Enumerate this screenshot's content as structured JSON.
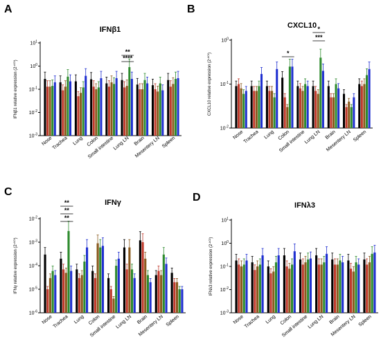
{
  "colors": [
    "#000000",
    "#c0392b",
    "#8a5a1e",
    "#2e8b2e",
    "#1f2fd0"
  ],
  "chart_data": [
    {
      "panel": "A",
      "title": "IFNβ1",
      "type": "bar",
      "yscale": "log",
      "ylabel": "IFNβ1 relative expression (2^-ΔCt)",
      "ylim_exp": [
        -3,
        1
      ],
      "tick_labels": [
        "10^-3",
        "10^-2",
        "10^-1",
        "10^0",
        "10^1"
      ],
      "categories": [
        "Nose",
        "Trachea",
        "Lung",
        "Colon",
        "Small intestine",
        "Lung LN",
        "Brain",
        "Mesentery LN",
        "Spleen"
      ],
      "values": [
        [
          0.28,
          0.13,
          0.13,
          0.14,
          0.2
        ],
        [
          0.2,
          0.09,
          0.13,
          0.35,
          0.22
        ],
        [
          0.22,
          0.05,
          0.07,
          0.12,
          0.38
        ],
        [
          0.27,
          0.13,
          0.1,
          0.12,
          0.3
        ],
        [
          0.18,
          0.13,
          0.2,
          0.17,
          0.3
        ],
        [
          0.25,
          0.12,
          0.14,
          0.9,
          0.28
        ],
        [
          0.16,
          0.1,
          0.1,
          0.25,
          0.18
        ],
        [
          0.15,
          0.1,
          0.08,
          0.18,
          0.09
        ],
        [
          0.25,
          0.13,
          0.17,
          0.28,
          0.3
        ]
      ],
      "significance": [
        "**",
        "****"
      ]
    },
    {
      "panel": "B",
      "title": "CXCL10",
      "type": "bar",
      "yscale": "log",
      "ylabel": "CXCL10 relative expression (2^-ΔCt)",
      "ylim_exp": [
        -2,
        0
      ],
      "tick_labels": [
        "10^-2",
        "10^-1",
        "10^0"
      ],
      "categories": [
        "Nose",
        "Trachea",
        "Lung",
        "Colon",
        "Small intestine",
        "Lung LN",
        "Brain",
        "Mesentery LN",
        "Spleen"
      ],
      "values": [
        [
          0.09,
          0.1,
          0.08,
          0.06,
          0.07
        ],
        [
          0.09,
          0.07,
          0.07,
          0.09,
          0.17
        ],
        [
          0.09,
          0.07,
          0.07,
          0.05,
          0.22
        ],
        [
          0.14,
          0.05,
          0.03,
          0.25,
          0.25
        ],
        [
          0.09,
          0.08,
          0.07,
          0.1,
          0.09
        ],
        [
          0.09,
          0.07,
          0.06,
          0.4,
          0.2
        ],
        [
          0.09,
          0.05,
          0.05,
          0.1,
          0.08
        ],
        [
          0.06,
          0.03,
          0.04,
          0.03,
          0.05
        ],
        [
          0.1,
          0.09,
          0.1,
          0.16,
          0.22
        ]
      ],
      "significance": [
        "*",
        "*",
        "***"
      ]
    },
    {
      "panel": "C",
      "title": "IFNγ",
      "type": "bar",
      "yscale": "log",
      "ylabel": "IFNγ relative expression (2^-ΔCt)",
      "ylim_exp": [
        -6,
        -2
      ],
      "tick_labels": [
        "10^-6",
        "10^-5",
        "10^-4",
        "10^-3",
        "10^-2"
      ],
      "categories": [
        "Nose",
        "Trachea",
        "Lung",
        "Colon",
        "Small intestine",
        "Lung LN",
        "Brain",
        "Mesentery LN",
        "Spleen"
      ],
      "values": [
        [
          0.0003,
          1e-05,
          3e-05,
          6e-05,
          4e-05
        ],
        [
          0.0002,
          7e-05,
          5e-05,
          0.003,
          6e-05
        ],
        [
          7e-05,
          3e-05,
          4e-05,
          0.00015,
          0.0006
        ],
        [
          6e-05,
          3e-05,
          0.0009,
          0.0006,
          0.0007
        ],
        [
          3e-05,
          1e-05,
          4e-06,
          0.0001,
          0.0002
        ],
        [
          0.0006,
          7e-05,
          0.0006,
          7e-05,
          3e-05
        ],
        [
          0.0012,
          0.001,
          0.0002,
          4e-05,
          2e-05
        ],
        [
          4e-05,
          6e-05,
          4e-05,
          0.0003,
          0.00012
        ],
        [
          5e-05,
          2e-05,
          2e-05,
          1e-05,
          1e-05
        ]
      ],
      "significance": [
        "**",
        "**",
        "**"
      ]
    },
    {
      "panel": "D",
      "title": "IFNλ3",
      "type": "bar",
      "yscale": "log",
      "ylabel": "IFNλ3 relative expression (2^-ΔCt)",
      "ylim_exp": [
        -3,
        1
      ],
      "tick_labels": [
        "10^-3",
        "10^-2",
        "10^-1",
        "10^0",
        "10^1"
      ],
      "categories": [
        "Nose",
        "Trachea",
        "Lung",
        "Colon",
        "Small intestine",
        "Lung LN",
        "Brain",
        "Mesentery LN",
        "Spleen"
      ],
      "values": [
        [
          0.18,
          0.12,
          0.1,
          0.12,
          0.18
        ],
        [
          0.15,
          0.07,
          0.1,
          0.12,
          0.3
        ],
        [
          0.1,
          0.05,
          0.06,
          0.15,
          0.3
        ],
        [
          0.3,
          0.1,
          0.08,
          0.12,
          0.45
        ],
        [
          0.2,
          0.12,
          0.15,
          0.2,
          0.22
        ],
        [
          0.3,
          0.12,
          0.12,
          0.15,
          0.35
        ],
        [
          0.2,
          0.12,
          0.12,
          0.18,
          0.15
        ],
        [
          0.18,
          0.08,
          0.06,
          0.15,
          0.12
        ],
        [
          0.2,
          0.12,
          0.15,
          0.35,
          0.4
        ]
      ],
      "significance": []
    }
  ]
}
